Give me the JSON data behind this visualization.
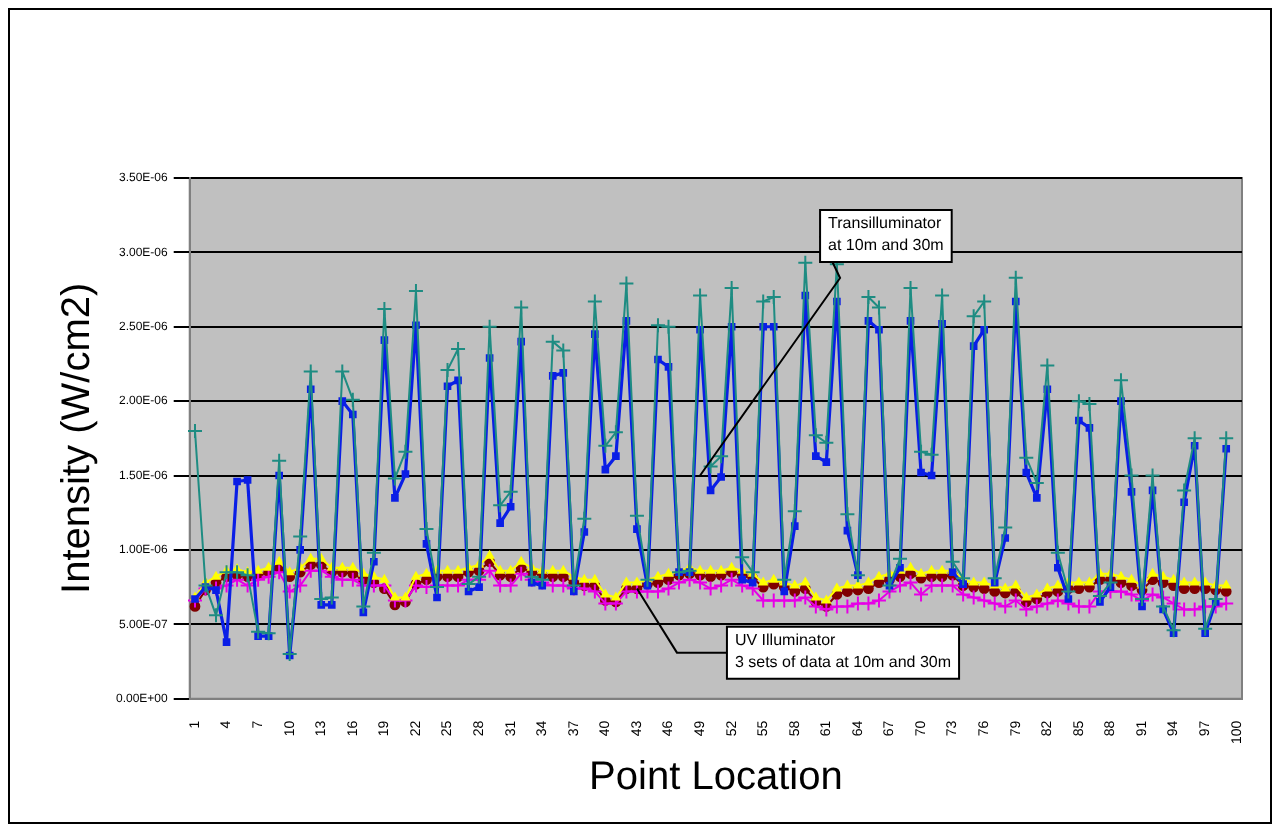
{
  "chart_data": {
    "type": "line",
    "xlabel": "Point Location",
    "ylabel": "Intensity (W/cm2)",
    "categories": [
      "1",
      null,
      null,
      "4",
      null,
      null,
      "7",
      null,
      null,
      "10",
      null,
      null,
      "13",
      null,
      null,
      "16",
      null,
      null,
      "19",
      null,
      null,
      "22",
      null,
      null,
      "25",
      null,
      null,
      "28",
      null,
      null,
      "31",
      null,
      null,
      "34",
      null,
      null,
      "37",
      null,
      null,
      "40",
      null,
      null,
      "43",
      null,
      null,
      "46",
      null,
      null,
      "49",
      null,
      null,
      "52",
      null,
      null,
      "55",
      null,
      null,
      "58",
      null,
      null,
      "61",
      null,
      null,
      "64",
      null,
      null,
      "67",
      null,
      null,
      "70",
      null,
      null,
      "73",
      null,
      null,
      "76",
      null,
      null,
      "79",
      null,
      null,
      "82",
      null,
      null,
      "85",
      null,
      null,
      "88",
      null,
      null,
      "91",
      null,
      null,
      "94",
      null,
      null,
      "97",
      null,
      null,
      "100"
    ],
    "ylim": [
      0,
      3.5e-06
    ],
    "yticks": [
      {
        "value": 0,
        "label": "0.00E+00"
      },
      {
        "value": 5e-07,
        "label": "5.00E-07"
      },
      {
        "value": 1e-06,
        "label": "1.00E-06"
      },
      {
        "value": 1.5e-06,
        "label": "1.50E-06"
      },
      {
        "value": 2e-06,
        "label": "2.00E-06"
      },
      {
        "value": 2.5e-06,
        "label": "2.50E-06"
      },
      {
        "value": 3e-06,
        "label": "3.00E-06"
      },
      {
        "value": 3.5e-06,
        "label": "3.50E-06"
      }
    ],
    "grid": "y",
    "legend": false,
    "series": [
      {
        "color": "#1e8c82",
        "marker": "cross",
        "values": [
          1.8e-06,
          7.6e-07,
          5.6e-07,
          8.5e-07,
          8.5e-07,
          8.3e-07,
          4.5e-07,
          4.4e-07,
          1.6e-06,
          3e-07,
          1.09e-06,
          2.2e-06,
          6.7e-07,
          6.8e-07,
          2.2e-06,
          2.01e-06,
          6.2e-07,
          9.8e-07,
          2.62e-06,
          1.48e-06,
          1.66e-06,
          2.74e-06,
          1.14e-06,
          7.5e-07,
          2.21e-06,
          2.35e-06,
          7.7e-07,
          8.2e-07,
          2.5e-06,
          1.3e-06,
          1.39e-06,
          2.63e-06,
          8.2e-07,
          8e-07,
          2.4e-06,
          2.34e-06,
          7.6e-07,
          1.21e-06,
          2.67e-06,
          1.7e-06,
          1.79e-06,
          2.79e-06,
          1.23e-06,
          8e-07,
          2.51e-06,
          2.5e-06,
          8.5e-07,
          8.6e-07,
          2.71e-06,
          1.56e-06,
          1.63e-06,
          2.76e-06,
          9.5e-07,
          8.5e-07,
          2.67e-06,
          2.7e-06,
          8e-07,
          1.26e-06,
          2.93e-06,
          1.77e-06,
          1.72e-06,
          2.92e-06,
          1.24e-06,
          8.3e-07,
          2.7e-06,
          2.63e-06,
          7.6e-07,
          9.4e-07,
          2.76e-06,
          1.66e-06,
          1.64e-06,
          2.71e-06,
          9.2e-07,
          8.1e-07,
          2.57e-06,
          2.67e-06,
          8.1e-07,
          1.15e-06,
          2.83e-06,
          1.62e-06,
          1.45e-06,
          2.24e-06,
          9.8e-07,
          7.2e-07,
          2e-06,
          1.98e-06,
          6.9e-07,
          7.8e-07,
          2.14e-06,
          1.5e-06,
          6.7e-07,
          1.5e-06,
          6.2e-07,
          4.6e-07,
          1.4e-06,
          1.75e-06,
          4.7e-07,
          6.7e-07,
          1.75e-06,
          null
        ]
      },
      {
        "color": "#0a1ee6",
        "marker": "square",
        "values": [
          6.7e-07,
          7.5e-07,
          7.3e-07,
          3.8e-07,
          1.46e-06,
          1.47e-06,
          4.2e-07,
          4.2e-07,
          1.5e-06,
          2.9e-07,
          1e-06,
          2.08e-06,
          6.3e-07,
          6.3e-07,
          2e-06,
          1.91e-06,
          5.8e-07,
          9.2e-07,
          2.41e-06,
          1.35e-06,
          1.51e-06,
          2.51e-06,
          1.04e-06,
          6.8e-07,
          2.1e-06,
          2.14e-06,
          7.2e-07,
          7.5e-07,
          2.29e-06,
          1.18e-06,
          1.29e-06,
          2.4e-06,
          7.8e-07,
          7.6e-07,
          2.17e-06,
          2.19e-06,
          7.2e-07,
          1.12e-06,
          2.45e-06,
          1.54e-06,
          1.63e-06,
          2.54e-06,
          1.14e-06,
          7.6e-07,
          2.28e-06,
          2.23e-06,
          8.5e-07,
          8.5e-07,
          2.48e-06,
          1.4e-06,
          1.49e-06,
          2.5e-06,
          8e-07,
          7.8e-07,
          2.5e-06,
          2.5e-06,
          7.2e-07,
          1.16e-06,
          2.71e-06,
          1.63e-06,
          1.59e-06,
          2.67e-06,
          1.13e-06,
          8.3e-07,
          2.54e-06,
          2.48e-06,
          7.6e-07,
          8.8e-07,
          2.54e-06,
          1.52e-06,
          1.5e-06,
          2.52e-06,
          8.5e-07,
          7.7e-07,
          2.37e-06,
          2.48e-06,
          7.8e-07,
          1.08e-06,
          2.67e-06,
          1.52e-06,
          1.35e-06,
          2.08e-06,
          8.8e-07,
          6.7e-07,
          1.87e-06,
          1.82e-06,
          6.5e-07,
          7.5e-07,
          2e-06,
          1.39e-06,
          6.2e-07,
          1.4e-06,
          6e-07,
          4.4e-07,
          1.32e-06,
          1.7e-06,
          4.4e-07,
          6.5e-07,
          1.68e-06,
          null
        ]
      },
      {
        "color": "#ffff00",
        "marker": "triangle",
        "values": [
          6.8e-07,
          7.8e-07,
          8.2e-07,
          8.6e-07,
          8.7e-07,
          8.5e-07,
          8.6e-07,
          8.8e-07,
          9.2e-07,
          8.5e-07,
          8.8e-07,
          9.4e-07,
          9.4e-07,
          8.8e-07,
          8.8e-07,
          8.8e-07,
          8.4e-07,
          8.2e-07,
          8e-07,
          6.8e-07,
          6.8e-07,
          8.2e-07,
          8.4e-07,
          8.6e-07,
          8.6e-07,
          8.6e-07,
          8.8e-07,
          9e-07,
          9.6e-07,
          8.6e-07,
          8.6e-07,
          9.2e-07,
          8.8e-07,
          8.6e-07,
          8.6e-07,
          8.6e-07,
          8.2e-07,
          8e-07,
          8e-07,
          7e-07,
          6.8e-07,
          7.8e-07,
          7.8e-07,
          8e-07,
          8.2e-07,
          8.4e-07,
          8.6e-07,
          8.8e-07,
          8.6e-07,
          8.6e-07,
          8.6e-07,
          8.8e-07,
          8.6e-07,
          8.4e-07,
          7.8e-07,
          8e-07,
          7.8e-07,
          7.6e-07,
          7.8e-07,
          6.8e-07,
          6.6e-07,
          7.4e-07,
          7.6e-07,
          7.6e-07,
          7.8e-07,
          8.2e-07,
          8.4e-07,
          8.6e-07,
          8.8e-07,
          8.4e-07,
          8.6e-07,
          8.6e-07,
          8.6e-07,
          8e-07,
          7.8e-07,
          7.8e-07,
          7.6e-07,
          7.4e-07,
          7.6e-07,
          6.8e-07,
          7e-07,
          7.4e-07,
          7.6e-07,
          7.8e-07,
          7.8e-07,
          7.8e-07,
          8.4e-07,
          8.4e-07,
          8.2e-07,
          8e-07,
          7.6e-07,
          8.4e-07,
          8.2e-07,
          8e-07,
          7.8e-07,
          7.8e-07,
          7.8e-07,
          7.6e-07,
          7.6e-07,
          null
        ]
      },
      {
        "color": "#e600e6",
        "marker": "cross",
        "values": [
          6.6e-07,
          7.4e-07,
          7.4e-07,
          7.6e-07,
          8e-07,
          7.6e-07,
          8e-07,
          8.2e-07,
          8.5e-07,
          7.2e-07,
          7.6e-07,
          8.6e-07,
          8.6e-07,
          8.2e-07,
          8e-07,
          8e-07,
          7.6e-07,
          7.6e-07,
          7.6e-07,
          6.6e-07,
          6.6e-07,
          7.6e-07,
          7.5e-07,
          7.6e-07,
          7.6e-07,
          7.6e-07,
          8e-07,
          8e-07,
          8.6e-07,
          7.6e-07,
          7.6e-07,
          8.4e-07,
          8e-07,
          7.8e-07,
          7.6e-07,
          7.6e-07,
          7.4e-07,
          7.4e-07,
          7.2e-07,
          6.4e-07,
          6.4e-07,
          7.2e-07,
          7.2e-07,
          7.2e-07,
          7.2e-07,
          7.4e-07,
          7.8e-07,
          8e-07,
          7.8e-07,
          7.4e-07,
          7.6e-07,
          8e-07,
          7.6e-07,
          7.4e-07,
          6.6e-07,
          6.6e-07,
          6.6e-07,
          6.6e-07,
          6.8e-07,
          6.2e-07,
          6e-07,
          6.2e-07,
          6.2e-07,
          6.4e-07,
          6.4e-07,
          6.6e-07,
          7.2e-07,
          7.6e-07,
          7.8e-07,
          7e-07,
          7.6e-07,
          7.6e-07,
          7.6e-07,
          7e-07,
          6.8e-07,
          6.6e-07,
          6.4e-07,
          6.2e-07,
          6.6e-07,
          6e-07,
          6.2e-07,
          6.4e-07,
          6.6e-07,
          6.4e-07,
          6.2e-07,
          6.2e-07,
          7.2e-07,
          7.2e-07,
          7.2e-07,
          7e-07,
          6.6e-07,
          7e-07,
          6.8e-07,
          6.4e-07,
          6e-07,
          6e-07,
          6.2e-07,
          6.2e-07,
          6.4e-07,
          null
        ]
      },
      {
        "color": "#800000",
        "marker": "circle",
        "values": [
          6.2e-07,
          7.3e-07,
          7.8e-07,
          8.2e-07,
          8.3e-07,
          8.2e-07,
          8.3e-07,
          8.5e-07,
          8.8e-07,
          8.2e-07,
          8.5e-07,
          9e-07,
          9e-07,
          8.5e-07,
          8.5e-07,
          8.4e-07,
          8e-07,
          7.8e-07,
          7.4e-07,
          6.3e-07,
          6.5e-07,
          7.7e-07,
          8e-07,
          8.2e-07,
          8.2e-07,
          8.2e-07,
          8.5e-07,
          8.6e-07,
          9.2e-07,
          8.3e-07,
          8.2e-07,
          8.8e-07,
          8.5e-07,
          8.3e-07,
          8.2e-07,
          8.2e-07,
          7.8e-07,
          7.6e-07,
          7.6e-07,
          6.6e-07,
          6.5e-07,
          7.4e-07,
          7.4e-07,
          7.7e-07,
          7.8e-07,
          8e-07,
          8.3e-07,
          8.4e-07,
          8.3e-07,
          8.2e-07,
          8.3e-07,
          8.5e-07,
          8.3e-07,
          8.1e-07,
          7.5e-07,
          7.7e-07,
          7.5e-07,
          7.2e-07,
          7.4e-07,
          6.5e-07,
          6.2e-07,
          7e-07,
          7.2e-07,
          7.3e-07,
          7.4e-07,
          7.8e-07,
          8e-07,
          8.2e-07,
          8.4e-07,
          8.1e-07,
          8.2e-07,
          8.2e-07,
          8.3e-07,
          7.6e-07,
          7.5e-07,
          7.4e-07,
          7.2e-07,
          7.1e-07,
          7.2e-07,
          6.5e-07,
          6.7e-07,
          7.1e-07,
          7.2e-07,
          7.4e-07,
          7.4e-07,
          7.5e-07,
          8e-07,
          8e-07,
          7.8e-07,
          7.6e-07,
          7.3e-07,
          8e-07,
          7.8e-07,
          7.6e-07,
          7.4e-07,
          7.4e-07,
          7.4e-07,
          7.3e-07,
          7.2e-07,
          null
        ]
      }
    ],
    "annotations": [
      {
        "text": "Transilluminator\nat 10m and 30m",
        "x": "49",
        "y": 1.5e-06
      },
      {
        "text": "UV Illuminator\n3 sets of data at 10m and 30m",
        "x": "43",
        "y": 7.4e-07
      }
    ]
  }
}
